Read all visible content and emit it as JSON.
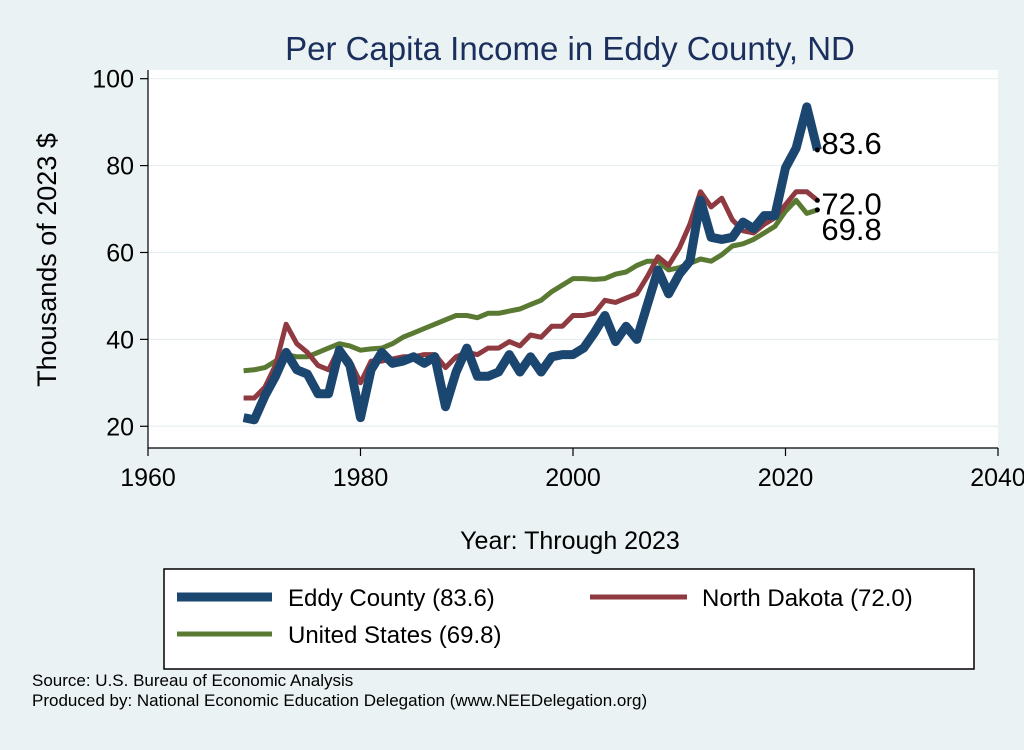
{
  "colors": {
    "background": "#eaf2f3",
    "plot_bg": "#ffffff",
    "title": "#1b2f5e",
    "grid": "#e8eff1",
    "eddy": "#1a4670",
    "north_dakota": "#8e3a40",
    "united_states": "#5a7a33"
  },
  "footer": {
    "source": "Source: U.S. Bureau of Economic Analysis",
    "produced_by": "Produced by: National Economic Education Delegation (www.NEEDelegation.org)"
  },
  "chart_data": {
    "type": "line",
    "title": "Per Capita Income in Eddy County, ND",
    "xlabel": "Year: Through 2023",
    "ylabel": "Thousands of 2023 $",
    "xlim": [
      1960,
      2040
    ],
    "ylim": [
      15,
      102
    ],
    "xticks": [
      1960,
      1980,
      2000,
      2020,
      2040
    ],
    "yticks": [
      20,
      40,
      60,
      80,
      100
    ],
    "grid": true,
    "legend_position": "bottom",
    "end_labels": [
      {
        "series": "Eddy County",
        "text": "83.6"
      },
      {
        "series": "North Dakota",
        "text": "72.0"
      },
      {
        "series": "United States",
        "text": "69.8"
      }
    ],
    "series": [
      {
        "name": "Eddy County (83.6)",
        "color": "#1a4670",
        "x": [
          1969,
          1970,
          1971,
          1972,
          1973,
          1974,
          1975,
          1976,
          1977,
          1978,
          1979,
          1980,
          1981,
          1982,
          1983,
          1984,
          1985,
          1986,
          1987,
          1988,
          1989,
          1990,
          1991,
          1992,
          1993,
          1994,
          1995,
          1996,
          1997,
          1998,
          1999,
          2000,
          2001,
          2002,
          2003,
          2004,
          2005,
          2006,
          2007,
          2008,
          2009,
          2010,
          2011,
          2012,
          2013,
          2014,
          2015,
          2016,
          2017,
          2018,
          2019,
          2020,
          2021,
          2022,
          2023
        ],
        "y": [
          22.0,
          21.5,
          27.0,
          31.5,
          37.0,
          33.0,
          32.0,
          27.5,
          27.5,
          37.5,
          34.0,
          22.0,
          33.0,
          37.0,
          34.5,
          35.0,
          36.0,
          34.5,
          36.0,
          24.5,
          32.5,
          38.0,
          31.5,
          31.5,
          32.5,
          36.5,
          32.5,
          36.0,
          32.5,
          36.0,
          36.5,
          36.5,
          38.0,
          41.5,
          45.5,
          39.5,
          43.0,
          40.0,
          48.0,
          56.0,
          50.5,
          55.0,
          58.0,
          72.0,
          63.5,
          63.0,
          63.5,
          67.0,
          65.5,
          68.5,
          68.5,
          79.5,
          84.0,
          93.5,
          83.6
        ]
      },
      {
        "name": "North Dakota (72.0)",
        "color": "#8e3a40",
        "x": [
          1969,
          1970,
          1971,
          1972,
          1973,
          1974,
          1975,
          1976,
          1977,
          1978,
          1979,
          1980,
          1981,
          1982,
          1983,
          1984,
          1985,
          1986,
          1987,
          1988,
          1989,
          1990,
          1991,
          1992,
          1993,
          1994,
          1995,
          1996,
          1997,
          1998,
          1999,
          2000,
          2001,
          2002,
          2003,
          2004,
          2005,
          2006,
          2007,
          2008,
          2009,
          2010,
          2011,
          2012,
          2013,
          2014,
          2015,
          2016,
          2017,
          2018,
          2019,
          2020,
          2021,
          2022,
          2023
        ],
        "y": [
          26.5,
          26.5,
          29.0,
          34.0,
          43.5,
          39.0,
          37.0,
          34.0,
          33.0,
          38.0,
          35.0,
          30.0,
          35.0,
          35.0,
          35.5,
          36.0,
          36.0,
          36.5,
          36.5,
          33.5,
          36.0,
          37.0,
          36.5,
          38.0,
          38.0,
          39.5,
          38.5,
          41.0,
          40.5,
          43.0,
          43.0,
          45.5,
          45.5,
          46.0,
          49.0,
          48.5,
          49.5,
          50.5,
          54.5,
          59.0,
          57.0,
          61.0,
          66.5,
          74.0,
          70.5,
          72.5,
          67.5,
          65.0,
          64.5,
          66.5,
          68.0,
          71.0,
          74.0,
          74.0,
          72.0
        ]
      },
      {
        "name": "United States (69.8)",
        "color": "#5a7a33",
        "x": [
          1969,
          1970,
          1971,
          1972,
          1973,
          1974,
          1975,
          1976,
          1977,
          1978,
          1979,
          1980,
          1981,
          1982,
          1983,
          1984,
          1985,
          1986,
          1987,
          1988,
          1989,
          1990,
          1991,
          1992,
          1993,
          1994,
          1995,
          1996,
          1997,
          1998,
          1999,
          2000,
          2001,
          2002,
          2003,
          2004,
          2005,
          2006,
          2007,
          2008,
          2009,
          2010,
          2011,
          2012,
          2013,
          2014,
          2015,
          2016,
          2017,
          2018,
          2019,
          2020,
          2021,
          2022,
          2023
        ],
        "y": [
          32.8,
          33.0,
          33.5,
          35.0,
          36.5,
          36.0,
          36.0,
          37.0,
          38.0,
          39.0,
          38.5,
          37.5,
          37.8,
          38.0,
          39.0,
          40.5,
          41.5,
          42.5,
          43.5,
          44.5,
          45.5,
          45.5,
          45.0,
          46.0,
          46.0,
          46.5,
          47.0,
          48.0,
          49.0,
          51.0,
          52.5,
          54.0,
          54.0,
          53.8,
          54.0,
          55.0,
          55.5,
          57.0,
          58.0,
          58.0,
          56.0,
          56.5,
          57.5,
          58.5,
          58.0,
          59.5,
          61.5,
          62.0,
          63.0,
          64.5,
          66.0,
          69.5,
          72.0,
          69.0,
          69.8
        ]
      }
    ]
  }
}
